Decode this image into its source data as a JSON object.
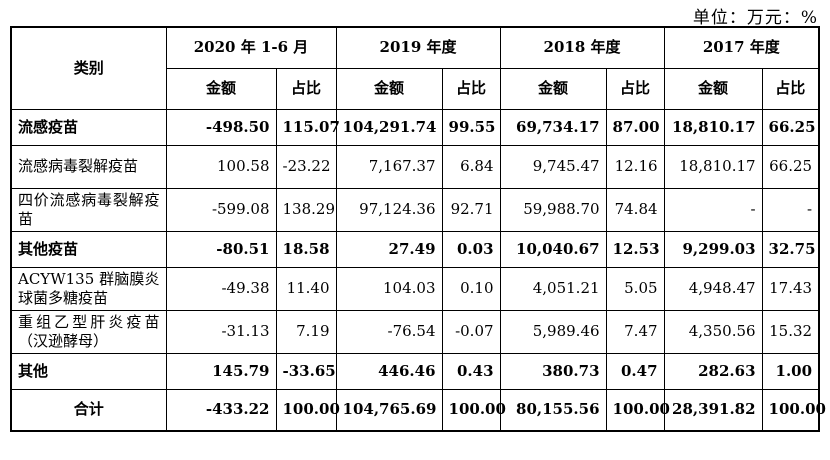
{
  "unit_label": "单位：万元：%",
  "header": {
    "category": "类别",
    "periods": [
      "2020 年 1-6 月",
      "2019 年度",
      "2018 年度",
      "2017 年度"
    ],
    "amount": "金额",
    "ratio": "占比"
  },
  "rows": [
    {
      "name": "流感疫苗",
      "bold": true,
      "values": [
        "-498.50",
        "115.07",
        "104,291.74",
        "99.55",
        "69,734.17",
        "87.00",
        "18,810.17",
        "66.25"
      ]
    },
    {
      "name": "流感病毒裂解疫苗",
      "bold": false,
      "values": [
        "100.58",
        "-23.22",
        "7,167.37",
        "6.84",
        "9,745.47",
        "12.16",
        "18,810.17",
        "66.25"
      ]
    },
    {
      "name": "四价流感病毒裂解疫苗",
      "bold": false,
      "values": [
        "-599.08",
        "138.29",
        "97,124.36",
        "92.71",
        "59,988.70",
        "74.84",
        "-",
        "-"
      ]
    },
    {
      "name": "其他疫苗",
      "bold": true,
      "values": [
        "-80.51",
        "18.58",
        "27.49",
        "0.03",
        "10,040.67",
        "12.53",
        "9,299.03",
        "32.75"
      ]
    },
    {
      "name": "ACYW135 群脑膜炎球菌多糖疫苗",
      "bold": false,
      "values": [
        "-49.38",
        "11.40",
        "104.03",
        "0.10",
        "4,051.21",
        "5.05",
        "4,948.47",
        "17.43"
      ]
    },
    {
      "name": "重组乙型肝炎疫苗（汉逊酵母）",
      "bold": false,
      "values": [
        "-31.13",
        "7.19",
        "-76.54",
        "-0.07",
        "5,989.46",
        "7.47",
        "4,350.56",
        "15.32"
      ]
    },
    {
      "name": "其他",
      "bold": true,
      "values": [
        "145.79",
        "-33.65",
        "446.46",
        "0.43",
        "380.73",
        "0.47",
        "282.63",
        "1.00"
      ]
    }
  ],
  "total": {
    "name": "合计",
    "values": [
      "-433.22",
      "100.00",
      "104,765.69",
      "100.00",
      "80,155.56",
      "100.00",
      "28,391.82",
      "100.00"
    ]
  }
}
